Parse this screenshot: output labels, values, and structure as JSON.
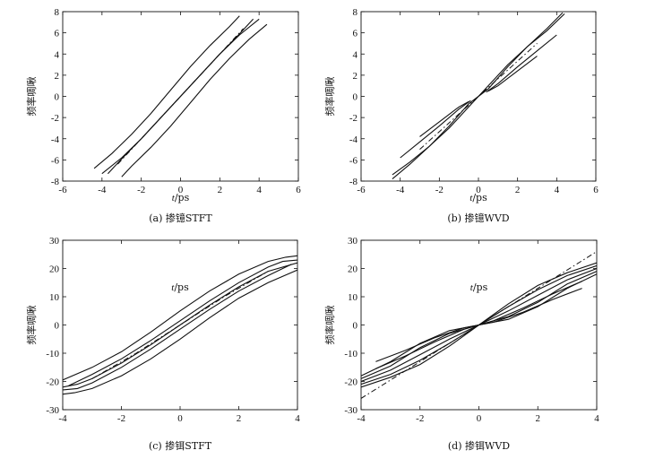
{
  "chart_data": [
    {
      "id": "a",
      "type": "line",
      "caption": "(a) 掺镱STFT",
      "xlabel_italic": "t",
      "xlabel_unit": "/ps",
      "ylabel": "频率啁啾",
      "xlim": [
        -6,
        6
      ],
      "ylim": [
        -8,
        8
      ],
      "xticks": [
        -6,
        -4,
        -2,
        0,
        2,
        4,
        6
      ],
      "yticks": [
        -8,
        -6,
        -4,
        -2,
        0,
        2,
        4,
        6,
        8
      ],
      "series": [
        {
          "style": "solid",
          "x": [
            -4.4,
            -3.5,
            -2.5,
            -1.5,
            -0.5,
            0.5,
            1.5,
            2.5,
            3.0
          ],
          "y": [
            -6.8,
            -5.4,
            -3.6,
            -1.6,
            0.6,
            2.8,
            4.8,
            6.6,
            7.6
          ]
        },
        {
          "style": "solid",
          "x": [
            -4.0,
            -3.0,
            -2.0,
            -1.0,
            0.0,
            1.0,
            2.0,
            3.0,
            3.7
          ],
          "y": [
            -7.3,
            -5.8,
            -4.0,
            -2.0,
            0.0,
            2.0,
            4.0,
            5.9,
            7.3
          ]
        },
        {
          "style": "solid",
          "x": [
            -3.7,
            -3.0,
            -2.0,
            -1.0,
            0.0,
            1.0,
            2.0,
            3.0,
            4.0
          ],
          "y": [
            -7.3,
            -5.9,
            -4.0,
            -2.0,
            0.0,
            2.0,
            4.0,
            5.8,
            7.3
          ]
        },
        {
          "style": "solid",
          "x": [
            -3.0,
            -2.5,
            -1.5,
            -0.5,
            0.5,
            1.5,
            2.5,
            3.5,
            4.4
          ],
          "y": [
            -7.6,
            -6.6,
            -4.8,
            -2.8,
            -0.6,
            1.6,
            3.6,
            5.4,
            6.8
          ]
        },
        {
          "style": "dashdot",
          "x": [
            -3.2,
            -1.6,
            0.0,
            1.6,
            3.2
          ],
          "y": [
            -6.4,
            -3.2,
            0.0,
            3.2,
            6.4
          ]
        }
      ]
    },
    {
      "id": "b",
      "type": "line",
      "caption": "(b) 掺镱WVD",
      "xlabel_italic": "t",
      "xlabel_unit": "/ps",
      "ylabel": "频率啁啾",
      "xlim": [
        -6,
        6
      ],
      "ylim": [
        -8,
        8
      ],
      "xticks": [
        -6,
        -4,
        -2,
        0,
        2,
        4,
        6
      ],
      "yticks": [
        -8,
        -6,
        -4,
        -2,
        0,
        2,
        4,
        6,
        8
      ],
      "series": [
        {
          "style": "solid",
          "x": [
            -4.4,
            -3.5,
            -2.5,
            -1.5,
            -0.5,
            0.0,
            0.5,
            1.5,
            2.5,
            3.5,
            4.4
          ],
          "y": [
            -7.4,
            -6.2,
            -4.7,
            -3.0,
            -1.0,
            0.0,
            1.0,
            3.0,
            4.7,
            6.2,
            7.8
          ]
        },
        {
          "style": "solid",
          "x": [
            -4.4,
            -3.5,
            -2.5,
            -1.5,
            -0.5,
            0.0,
            0.5,
            1.5,
            2.5,
            3.5,
            4.3
          ],
          "y": [
            -7.8,
            -6.4,
            -4.7,
            -2.8,
            -0.7,
            0.0,
            0.7,
            2.8,
            4.7,
            6.4,
            7.9
          ]
        },
        {
          "style": "solid",
          "x": [
            -4.0,
            -3.0,
            -2.0,
            -1.0,
            -0.4
          ],
          "y": [
            -5.8,
            -4.3,
            -2.8,
            -1.2,
            -0.4
          ]
        },
        {
          "style": "solid",
          "x": [
            -3.0,
            -2.0,
            -1.0,
            -0.5
          ],
          "y": [
            -3.8,
            -2.4,
            -1.0,
            -0.5
          ]
        },
        {
          "style": "solid",
          "x": [
            0.4,
            1.0,
            2.0,
            3.0,
            4.0
          ],
          "y": [
            0.4,
            1.2,
            2.8,
            4.3,
            5.8
          ]
        },
        {
          "style": "solid",
          "x": [
            0.5,
            1.0,
            2.0,
            3.0
          ],
          "y": [
            0.5,
            1.0,
            2.4,
            3.8
          ]
        },
        {
          "style": "dashdot",
          "x": [
            -3.0,
            -1.5,
            0.0,
            1.5,
            3.0
          ],
          "y": [
            -5.0,
            -2.5,
            0.0,
            2.5,
            5.0
          ]
        }
      ]
    },
    {
      "id": "c",
      "type": "line",
      "caption": "(c) 掺铒STFT",
      "xlabel_italic": "t",
      "xlabel_unit": "/ps",
      "ylabel": "频率啁啾",
      "xlim": [
        -4,
        4
      ],
      "ylim": [
        -30,
        30
      ],
      "xticks": [
        -4,
        -2,
        0,
        2,
        4
      ],
      "yticks": [
        -30,
        -20,
        -10,
        0,
        10,
        20,
        30
      ],
      "series": [
        {
          "style": "solid",
          "x": [
            -4.0,
            -3.0,
            -2.0,
            -1.0,
            0.0,
            1.0,
            2.0,
            3.0,
            3.6,
            4.0
          ],
          "y": [
            -19.5,
            -15.0,
            -9.5,
            -2.5,
            5.0,
            12.0,
            18.0,
            22.5,
            24.0,
            24.5
          ]
        },
        {
          "style": "solid",
          "x": [
            -3.8,
            -3.0,
            -2.0,
            -1.0,
            0.0,
            1.0,
            2.0,
            3.0,
            3.5,
            4.0
          ],
          "y": [
            -21.5,
            -17.5,
            -12.0,
            -5.5,
            1.5,
            8.5,
            15.0,
            20.5,
            22.5,
            23.0
          ]
        },
        {
          "style": "solid",
          "x": [
            -4.0,
            -3.5,
            -3.0,
            -2.0,
            -1.0,
            0.0,
            1.0,
            2.0,
            3.0,
            4.0
          ],
          "y": [
            -22.0,
            -21.0,
            -19.0,
            -13.5,
            -7.0,
            0.0,
            7.0,
            13.5,
            19.0,
            22.0
          ]
        },
        {
          "style": "solid",
          "x": [
            -4.0,
            -3.5,
            -3.0,
            -2.0,
            -1.0,
            0.0,
            1.0,
            2.0,
            3.0,
            3.8
          ],
          "y": [
            -23.0,
            -22.5,
            -20.5,
            -15.0,
            -8.5,
            -1.5,
            5.5,
            12.0,
            17.5,
            21.5
          ]
        },
        {
          "style": "solid",
          "x": [
            -4.0,
            -3.6,
            -3.0,
            -2.0,
            -1.0,
            0.0,
            1.0,
            2.0,
            3.0,
            4.0
          ],
          "y": [
            -24.5,
            -24.0,
            -22.5,
            -18.0,
            -12.0,
            -5.0,
            2.5,
            9.5,
            15.0,
            19.5
          ]
        },
        {
          "style": "dashdot",
          "x": [
            -3.0,
            -1.5,
            0.0,
            1.5,
            3.0
          ],
          "y": [
            -19.0,
            -10.0,
            0.0,
            10.0,
            19.0
          ]
        }
      ]
    },
    {
      "id": "d",
      "type": "line",
      "caption": "(d) 掺铒WVD",
      "xlabel_italic": "t",
      "xlabel_unit": "/ps",
      "ylabel": "频率啁啾",
      "xlim": [
        -4,
        4
      ],
      "ylim": [
        -30,
        30
      ],
      "xticks": [
        -4,
        -2,
        0,
        2,
        4
      ],
      "yticks": [
        -30,
        -20,
        -10,
        0,
        10,
        20,
        30
      ],
      "series": [
        {
          "style": "solid",
          "x": [
            -4.0,
            -3.0,
            -2.0,
            -1.0,
            0.0,
            1.0,
            2.0,
            3.0,
            4.0
          ],
          "y": [
            -21.0,
            -17.5,
            -12.5,
            -6.5,
            0.0,
            6.5,
            12.5,
            17.5,
            21.0
          ]
        },
        {
          "style": "solid",
          "x": [
            -4.0,
            -3.0,
            -2.0,
            -1.0,
            0.0,
            1.0,
            2.0,
            3.0,
            4.0
          ],
          "y": [
            -20.0,
            -16.0,
            -10.5,
            -5.0,
            0.0,
            5.0,
            10.5,
            16.0,
            20.0
          ]
        },
        {
          "style": "solid",
          "x": [
            -4.0,
            -3.0,
            -2.0,
            -1.0,
            0.0,
            1.0,
            2.0,
            3.0,
            4.0
          ],
          "y": [
            -22.0,
            -18.5,
            -14.0,
            -7.5,
            0.0,
            7.5,
            14.0,
            18.5,
            22.0
          ]
        },
        {
          "style": "solid",
          "x": [
            -4.0,
            -3.0,
            -2.0,
            -1.0,
            0.0,
            1.0,
            2.0,
            3.0,
            4.0
          ],
          "y": [
            -19.0,
            -14.5,
            -8.0,
            -3.0,
            0.0,
            3.0,
            8.0,
            14.5,
            19.0
          ]
        },
        {
          "style": "solid",
          "x": [
            -4.0,
            -3.0,
            -2.0,
            -1.0,
            0.0,
            1.0,
            2.0,
            3.0,
            4.0
          ],
          "y": [
            -18.0,
            -13.0,
            -6.5,
            -2.0,
            0.0,
            2.0,
            6.5,
            13.0,
            18.0
          ]
        },
        {
          "style": "solid",
          "x": [
            -3.5,
            -2.5,
            -1.5,
            -0.5,
            0.0,
            0.5,
            1.5,
            2.5,
            3.5
          ],
          "y": [
            -13.0,
            -9.0,
            -4.5,
            -1.0,
            0.0,
            1.0,
            4.5,
            9.0,
            13.0
          ]
        },
        {
          "style": "solid",
          "x": [
            -3.5,
            -2.5,
            -1.5,
            -0.5,
            0.0,
            0.5,
            1.5,
            2.5,
            3.5
          ],
          "y": [
            -15.5,
            -11.0,
            -6.0,
            -1.5,
            0.0,
            1.5,
            6.0,
            11.0,
            15.5
          ]
        },
        {
          "style": "dashdot",
          "x": [
            -4.0,
            -2.0,
            0.0,
            2.0,
            4.0
          ],
          "y": [
            -26.0,
            -13.0,
            0.0,
            13.0,
            26.0
          ]
        }
      ]
    }
  ]
}
